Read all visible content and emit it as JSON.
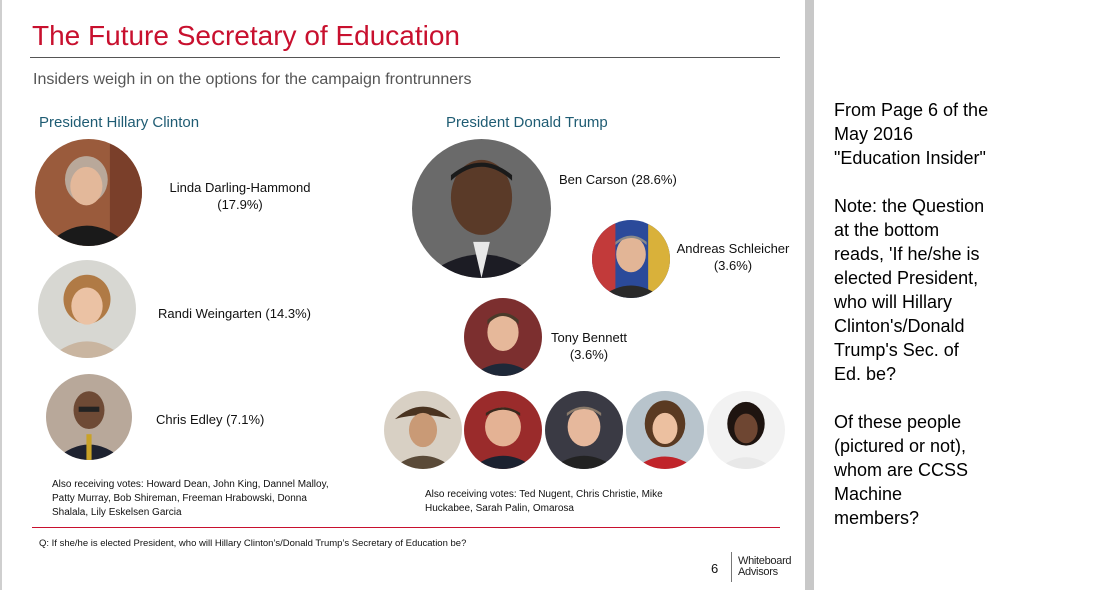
{
  "slide": {
    "title": "The Future Secretary of Education",
    "subtitle": "Insiders weigh in on the options for the campaign frontrunners",
    "clinton": {
      "heading": "President Hillary Clinton",
      "candidates": [
        {
          "name": "Linda Darling-Hammond",
          "pct": "(17.9%)"
        },
        {
          "name": "Randi Weingarten (14.3%)"
        },
        {
          "name": "Chris Edley (7.1%)"
        }
      ],
      "also_receiving": "Also receiving votes: Howard Dean, John King, Dannel Malloy, Patty Murray, Bob Shireman, Freeman Hrabowski, Donna Shalala, Lily Eskelsen Garcia"
    },
    "trump": {
      "heading": "President Donald Trump",
      "candidates": [
        {
          "name": "Ben Carson (28.6%)"
        },
        {
          "name": "Andreas Schleicher",
          "pct": "(3.6%)"
        },
        {
          "name": "Tony Bennett",
          "pct": "(3.6%)"
        }
      ],
      "also_receiving": "Also receiving votes: Ted Nugent, Chris Christie, Mike Huckabee, Sarah Palin, Omarosa"
    },
    "question": "Q: If she/he is elected President, who will Hillary Clinton’s/Donald Trump’s Secretary of Education be?",
    "page_number": "6",
    "logo_line1": "Whiteboard",
    "logo_line2": "Advisors"
  },
  "note": {
    "para1": "From Page 6 of the\nMay 2016\n\"Education Insider\"",
    "para2": "Note: the Question\nat the bottom\nreads, 'If he/she is\nelected President,\nwho will Hillary\nClinton's/Donald\nTrump's Sec. of\nEd. be?",
    "para3": "Of these people\n(pictured or not),\nwhom are CCSS\nMachine\nmembers?"
  },
  "colors": {
    "title_red": "#c8102e",
    "heading_teal": "#1f5c73"
  }
}
